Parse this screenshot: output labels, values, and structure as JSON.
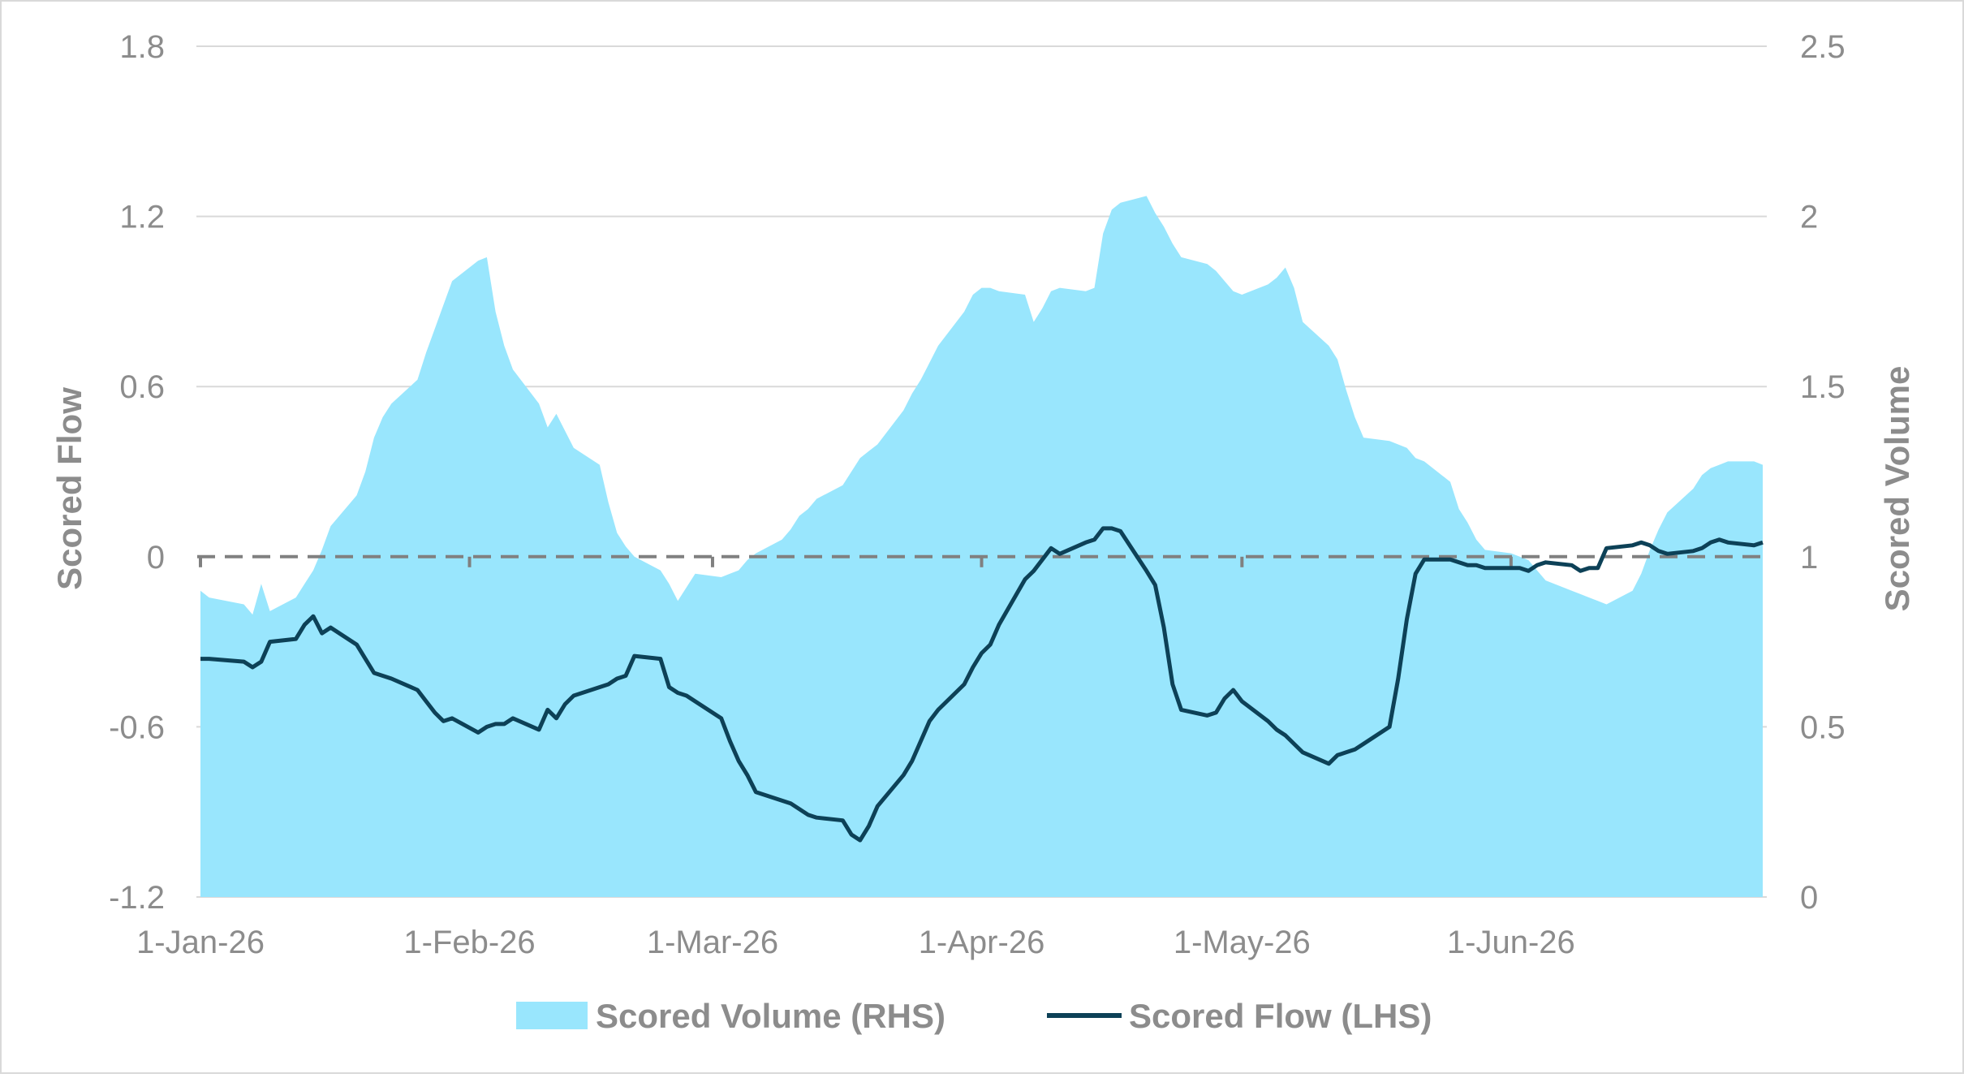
{
  "colors": {
    "volume_fill": "#99e6fd",
    "flow_line": "#0d4157",
    "zero_line": "#808080",
    "text": "#8c8c8c",
    "grid": "#d9d9d9"
  },
  "chart_data": {
    "type": "line",
    "xlabel": "",
    "ylabel_left": "Scored Flow",
    "ylabel_right": "Scored Volume",
    "x_ticks": [
      "1-Jan-26",
      "1-Feb-26",
      "1-Mar-26",
      "1-Apr-26",
      "1-May-26",
      "1-Jun-26"
    ],
    "ylim_left": [
      -1.2,
      1.8
    ],
    "yticks_left": [
      "1.8",
      "1.2",
      "0.6",
      "0",
      "-0.6",
      "-1.2"
    ],
    "ylim_right": [
      0,
      2.5
    ],
    "yticks_right": [
      "2.5",
      "2",
      "1.5",
      "1",
      "0.5",
      "0"
    ],
    "grid": "horizontal",
    "legend_position": "bottom",
    "series": [
      {
        "name": "Scored Volume (RHS)",
        "type": "area",
        "axis": "right",
        "x": [
          "2026-01-01",
          "2026-01-02",
          "2026-01-06",
          "2026-01-07",
          "2026-01-08",
          "2026-01-09",
          "2026-01-12",
          "2026-01-13",
          "2026-01-14",
          "2026-01-15",
          "2026-01-16",
          "2026-01-19",
          "2026-01-20",
          "2026-01-21",
          "2026-01-22",
          "2026-01-23",
          "2026-01-26",
          "2026-01-27",
          "2026-01-28",
          "2026-01-29",
          "2026-01-30",
          "2026-02-02",
          "2026-02-03",
          "2026-02-04",
          "2026-02-05",
          "2026-02-06",
          "2026-02-09",
          "2026-02-10",
          "2026-02-11",
          "2026-02-12",
          "2026-02-13",
          "2026-02-16",
          "2026-02-17",
          "2026-02-18",
          "2026-02-19",
          "2026-02-20",
          "2026-02-23",
          "2026-02-24",
          "2026-02-25",
          "2026-02-26",
          "2026-02-27",
          "2026-03-02",
          "2026-03-03",
          "2026-03-04",
          "2026-03-05",
          "2026-03-06",
          "2026-03-09",
          "2026-03-10",
          "2026-03-11",
          "2026-03-12",
          "2026-03-13",
          "2026-03-16",
          "2026-03-17",
          "2026-03-18",
          "2026-03-19",
          "2026-03-20",
          "2026-03-23",
          "2026-03-24",
          "2026-03-25",
          "2026-03-26",
          "2026-03-27",
          "2026-03-30",
          "2026-03-31",
          "2026-04-01",
          "2026-04-02",
          "2026-04-03",
          "2026-04-06",
          "2026-04-07",
          "2026-04-08",
          "2026-04-09",
          "2026-04-10",
          "2026-04-13",
          "2026-04-14",
          "2026-04-15",
          "2026-04-16",
          "2026-04-17",
          "2026-04-20",
          "2026-04-21",
          "2026-04-22",
          "2026-04-23",
          "2026-04-24",
          "2026-04-27",
          "2026-04-28",
          "2026-04-29",
          "2026-04-30",
          "2026-05-01",
          "2026-05-04",
          "2026-05-05",
          "2026-05-06",
          "2026-05-07",
          "2026-05-08",
          "2026-05-11",
          "2026-05-12",
          "2026-05-13",
          "2026-05-14",
          "2026-05-15",
          "2026-05-18",
          "2026-05-19",
          "2026-05-20",
          "2026-05-21",
          "2026-05-22",
          "2026-05-25",
          "2026-05-26",
          "2026-05-27",
          "2026-05-28",
          "2026-05-29",
          "2026-06-01",
          "2026-06-02",
          "2026-06-03",
          "2026-06-04",
          "2026-06-05",
          "2026-06-08",
          "2026-06-09",
          "2026-06-10",
          "2026-06-11",
          "2026-06-12",
          "2026-06-15",
          "2026-06-16",
          "2026-06-17",
          "2026-06-18",
          "2026-06-19",
          "2026-06-22",
          "2026-06-23",
          "2026-06-24",
          "2026-06-25",
          "2026-06-26",
          "2026-06-29",
          "2026-06-30"
        ],
        "values": [
          0.9,
          0.88,
          0.86,
          0.83,
          0.92,
          0.84,
          0.88,
          0.92,
          0.96,
          1.02,
          1.09,
          1.18,
          1.25,
          1.35,
          1.41,
          1.45,
          1.52,
          1.6,
          1.67,
          1.74,
          1.81,
          1.87,
          1.88,
          1.72,
          1.62,
          1.55,
          1.45,
          1.38,
          1.42,
          1.37,
          1.32,
          1.27,
          1.16,
          1.07,
          1.03,
          1.0,
          0.96,
          0.92,
          0.87,
          0.91,
          0.95,
          0.94,
          0.95,
          0.96,
          0.99,
          1.01,
          1.05,
          1.08,
          1.12,
          1.14,
          1.17,
          1.21,
          1.25,
          1.29,
          1.31,
          1.33,
          1.43,
          1.48,
          1.52,
          1.57,
          1.62,
          1.72,
          1.77,
          1.79,
          1.79,
          1.78,
          1.77,
          1.69,
          1.73,
          1.78,
          1.79,
          1.78,
          1.79,
          1.95,
          2.02,
          2.04,
          2.06,
          2.01,
          1.97,
          1.92,
          1.88,
          1.86,
          1.84,
          1.81,
          1.78,
          1.77,
          1.8,
          1.82,
          1.85,
          1.79,
          1.69,
          1.62,
          1.58,
          1.49,
          1.41,
          1.35,
          1.34,
          1.33,
          1.32,
          1.29,
          1.28,
          1.22,
          1.14,
          1.1,
          1.05,
          1.02,
          1.01,
          1.0,
          0.99,
          0.96,
          0.93,
          0.9,
          0.89,
          0.88,
          0.87,
          0.86,
          0.9,
          0.95,
          1.02,
          1.08,
          1.13,
          1.2,
          1.24,
          1.26,
          1.27,
          1.28,
          1.28,
          1.27
        ]
      },
      {
        "name": "Scored Flow (LHS)",
        "type": "line",
        "axis": "left",
        "x": [
          "2026-01-01",
          "2026-01-02",
          "2026-01-06",
          "2026-01-07",
          "2026-01-08",
          "2026-01-09",
          "2026-01-12",
          "2026-01-13",
          "2026-01-14",
          "2026-01-15",
          "2026-01-16",
          "2026-01-19",
          "2026-01-20",
          "2026-01-21",
          "2026-01-22",
          "2026-01-23",
          "2026-01-26",
          "2026-01-27",
          "2026-01-28",
          "2026-01-29",
          "2026-01-30",
          "2026-02-02",
          "2026-02-03",
          "2026-02-04",
          "2026-02-05",
          "2026-02-06",
          "2026-02-09",
          "2026-02-10",
          "2026-02-11",
          "2026-02-12",
          "2026-02-13",
          "2026-02-16",
          "2026-02-17",
          "2026-02-18",
          "2026-02-19",
          "2026-02-20",
          "2026-02-23",
          "2026-02-24",
          "2026-02-25",
          "2026-02-26",
          "2026-02-27",
          "2026-03-02",
          "2026-03-03",
          "2026-03-04",
          "2026-03-05",
          "2026-03-06",
          "2026-03-09",
          "2026-03-10",
          "2026-03-11",
          "2026-03-12",
          "2026-03-13",
          "2026-03-16",
          "2026-03-17",
          "2026-03-18",
          "2026-03-19",
          "2026-03-20",
          "2026-03-23",
          "2026-03-24",
          "2026-03-25",
          "2026-03-26",
          "2026-03-27",
          "2026-03-30",
          "2026-03-31",
          "2026-04-01",
          "2026-04-02",
          "2026-04-03",
          "2026-04-06",
          "2026-04-07",
          "2026-04-08",
          "2026-04-09",
          "2026-04-10",
          "2026-04-13",
          "2026-04-14",
          "2026-04-15",
          "2026-04-16",
          "2026-04-17",
          "2026-04-20",
          "2026-04-21",
          "2026-04-22",
          "2026-04-23",
          "2026-04-24",
          "2026-04-27",
          "2026-04-28",
          "2026-04-29",
          "2026-04-30",
          "2026-05-01",
          "2026-05-04",
          "2026-05-05",
          "2026-05-06",
          "2026-05-07",
          "2026-05-08",
          "2026-05-11",
          "2026-05-12",
          "2026-05-13",
          "2026-05-14",
          "2026-05-15",
          "2026-05-18",
          "2026-05-19",
          "2026-05-20",
          "2026-05-21",
          "2026-05-22",
          "2026-05-25",
          "2026-05-26",
          "2026-05-27",
          "2026-05-28",
          "2026-05-29",
          "2026-06-01",
          "2026-06-02",
          "2026-06-03",
          "2026-06-04",
          "2026-06-05",
          "2026-06-08",
          "2026-06-09",
          "2026-06-10",
          "2026-06-11",
          "2026-06-12",
          "2026-06-15",
          "2026-06-16",
          "2026-06-17",
          "2026-06-18",
          "2026-06-19",
          "2026-06-22",
          "2026-06-23",
          "2026-06-24",
          "2026-06-25",
          "2026-06-26",
          "2026-06-29",
          "2026-06-30"
        ],
        "values": [
          -0.36,
          -0.36,
          -0.37,
          -0.39,
          -0.37,
          -0.3,
          -0.29,
          -0.24,
          -0.21,
          -0.27,
          -0.25,
          -0.31,
          -0.36,
          -0.41,
          -0.42,
          -0.43,
          -0.47,
          -0.51,
          -0.55,
          -0.58,
          -0.57,
          -0.62,
          -0.6,
          -0.59,
          -0.59,
          -0.57,
          -0.61,
          -0.54,
          -0.57,
          -0.52,
          -0.49,
          -0.46,
          -0.45,
          -0.43,
          -0.42,
          -0.35,
          -0.36,
          -0.46,
          -0.48,
          -0.49,
          -0.51,
          -0.57,
          -0.65,
          -0.72,
          -0.77,
          -0.83,
          -0.86,
          -0.87,
          -0.89,
          -0.91,
          -0.92,
          -0.93,
          -0.98,
          -1.0,
          -0.95,
          -0.88,
          -0.77,
          -0.72,
          -0.65,
          -0.58,
          -0.54,
          -0.45,
          -0.39,
          -0.34,
          -0.31,
          -0.24,
          -0.08,
          -0.05,
          -0.01,
          0.03,
          0.01,
          0.05,
          0.06,
          0.1,
          0.1,
          0.09,
          -0.05,
          -0.1,
          -0.25,
          -0.45,
          -0.54,
          -0.56,
          -0.55,
          -0.5,
          -0.47,
          -0.51,
          -0.58,
          -0.61,
          -0.63,
          -0.66,
          -0.69,
          -0.73,
          -0.7,
          -0.69,
          -0.68,
          -0.66,
          -0.6,
          -0.43,
          -0.22,
          -0.06,
          -0.01,
          -0.01,
          -0.02,
          -0.03,
          -0.03,
          -0.04,
          -0.04,
          -0.04,
          -0.05,
          -0.03,
          -0.02,
          -0.03,
          -0.05,
          -0.04,
          -0.04,
          0.03,
          0.04,
          0.05,
          0.04,
          0.02,
          0.01,
          0.02,
          0.03,
          0.05,
          0.06,
          0.05,
          0.04,
          0.05
        ]
      }
    ]
  }
}
